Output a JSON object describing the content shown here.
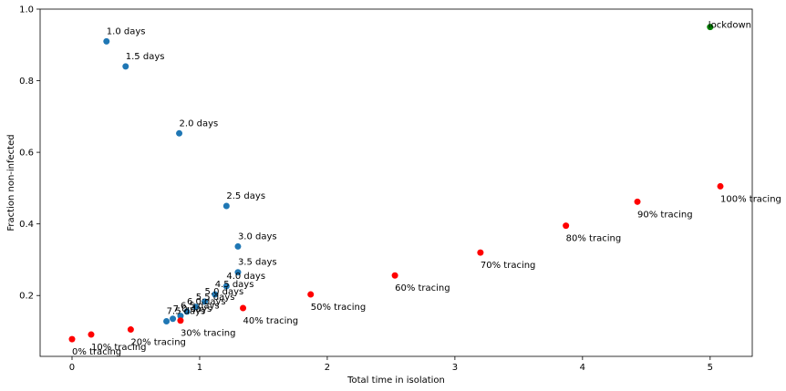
{
  "chart_data": {
    "type": "scatter",
    "title": "",
    "xlabel": "Total time in isolation",
    "ylabel": "Fraction non-infected",
    "xlim": [
      -0.25,
      5.33
    ],
    "ylim": [
      0.03,
      1.0
    ],
    "xticks": [
      {
        "v": 0,
        "label": "0"
      },
      {
        "v": 1,
        "label": "1"
      },
      {
        "v": 2,
        "label": "2"
      },
      {
        "v": 3,
        "label": "3"
      },
      {
        "v": 4,
        "label": "4"
      },
      {
        "v": 5,
        "label": "5"
      }
    ],
    "yticks": [
      {
        "v": 0.2,
        "label": "0.2"
      },
      {
        "v": 0.4,
        "label": "0.4"
      },
      {
        "v": 0.6,
        "label": "0.6"
      },
      {
        "v": 0.8,
        "label": "0.8"
      },
      {
        "v": 1.0,
        "label": "1.0"
      }
    ],
    "grid": false,
    "series": [
      {
        "color": "#1f77b4",
        "points": [
          {
            "x": 0.27,
            "y": 0.91,
            "label": "1.0 days"
          },
          {
            "x": 0.42,
            "y": 0.84,
            "label": "1.5 days"
          },
          {
            "x": 0.84,
            "y": 0.653,
            "label": "2.0 days"
          },
          {
            "x": 1.21,
            "y": 0.45,
            "label": "2.5 days"
          },
          {
            "x": 1.3,
            "y": 0.337,
            "label": "3.0 days"
          },
          {
            "x": 1.3,
            "y": 0.265,
            "label": "3.5 days"
          },
          {
            "x": 1.21,
            "y": 0.226,
            "label": "4.0 days"
          },
          {
            "x": 1.12,
            "y": 0.203,
            "label": "4.5 days"
          },
          {
            "x": 1.04,
            "y": 0.183,
            "label": "5.0 days"
          },
          {
            "x": 0.97,
            "y": 0.168,
            "label": "5.5 days"
          },
          {
            "x": 0.9,
            "y": 0.155,
            "label": "6.0 days"
          },
          {
            "x": 0.85,
            "y": 0.143,
            "label": "6.5 days"
          },
          {
            "x": 0.79,
            "y": 0.135,
            "label": "7.0 days"
          },
          {
            "x": 0.74,
            "y": 0.128,
            "label": "7.5 days"
          }
        ]
      },
      {
        "color": "#ff0000",
        "points": [
          {
            "x": 0.0,
            "y": 0.078,
            "label": "0% tracing"
          },
          {
            "x": 0.15,
            "y": 0.091,
            "label": "10% tracing"
          },
          {
            "x": 0.46,
            "y": 0.105,
            "label": "20% tracing"
          },
          {
            "x": 0.85,
            "y": 0.13,
            "label": "30% tracing"
          },
          {
            "x": 1.34,
            "y": 0.165,
            "label": "40% tracing"
          },
          {
            "x": 1.87,
            "y": 0.203,
            "label": "50% tracing"
          },
          {
            "x": 2.53,
            "y": 0.256,
            "label": "60% tracing"
          },
          {
            "x": 3.2,
            "y": 0.32,
            "label": "70% tracing"
          },
          {
            "x": 3.87,
            "y": 0.395,
            "label": "80% tracing"
          },
          {
            "x": 4.43,
            "y": 0.462,
            "label": "90% tracing"
          },
          {
            "x": 5.08,
            "y": 0.505,
            "label": "100% tracing"
          }
        ]
      },
      {
        "color": "#008000",
        "points": [
          {
            "x": 5.0,
            "y": 0.95,
            "label": "lockdown"
          }
        ]
      }
    ]
  }
}
